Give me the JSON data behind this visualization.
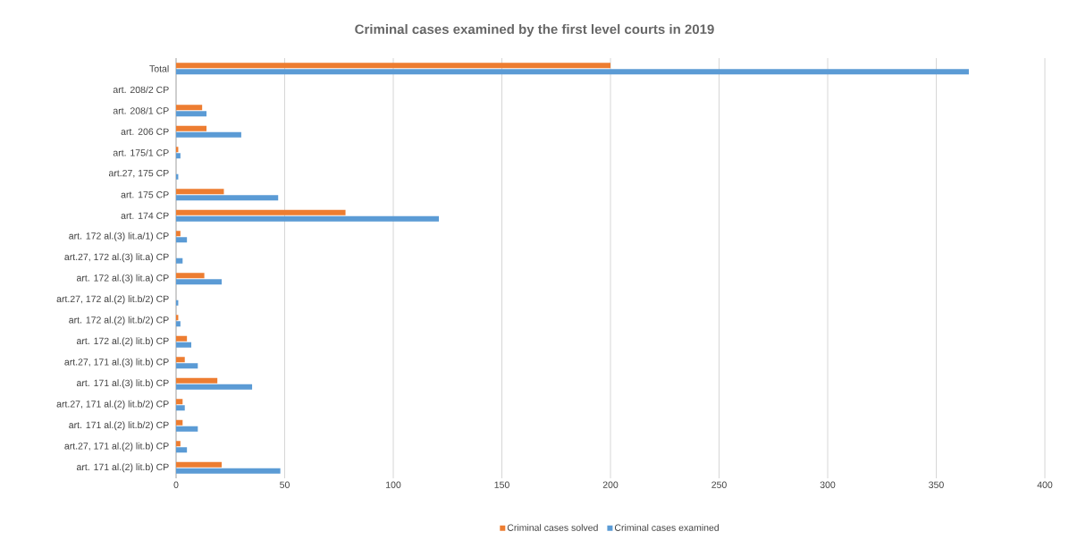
{
  "chart_data": {
    "type": "bar",
    "orientation": "horizontal",
    "title": "Criminal cases examined by the first level courts in 2019",
    "categories": [
      "Total",
      "art. 208/2 CP",
      "art. 208/1 CP",
      "art. 206 CP",
      "art. 175/1 CP",
      "art.27, 175 CP",
      "art. 175 CP",
      "art. 174 CP",
      "art. 172 al.(3) lit.a/1) CP",
      "art.27, 172 al.(3) lit.a) CP",
      "art. 172 al.(3) lit.a) CP",
      "art.27, 172 al.(2) lit.b/2) CP",
      "art. 172 al.(2) lit.b/2) CP",
      "art. 172 al.(2) lit.b) CP",
      "art.27, 171 al.(3) lit.b) CP",
      "art. 171 al.(3) lit.b) CP",
      "art.27, 171 al.(2) lit.b/2) CP",
      "art. 171 al.(2) lit.b/2) CP",
      "art.27, 171 al.(2) lit.b) CP",
      "art. 171 al.(2) lit.b) CP"
    ],
    "series": [
      {
        "name": "Criminal cases solved",
        "color": "#ed7d31",
        "values": [
          200,
          0,
          12,
          14,
          1,
          0,
          22,
          78,
          2,
          0,
          13,
          0,
          1,
          5,
          4,
          19,
          3,
          3,
          2,
          21
        ]
      },
      {
        "name": "Criminal cases examined",
        "color": "#5b9bd5",
        "values": [
          365,
          0,
          14,
          30,
          2,
          1,
          47,
          121,
          5,
          3,
          21,
          1,
          2,
          7,
          10,
          35,
          4,
          10,
          5,
          48
        ]
      }
    ],
    "xlim": [
      0,
      400
    ],
    "xticks": [
      0,
      50,
      100,
      150,
      200,
      250,
      300,
      350,
      400
    ],
    "grid": "x",
    "legend": "bottom"
  }
}
